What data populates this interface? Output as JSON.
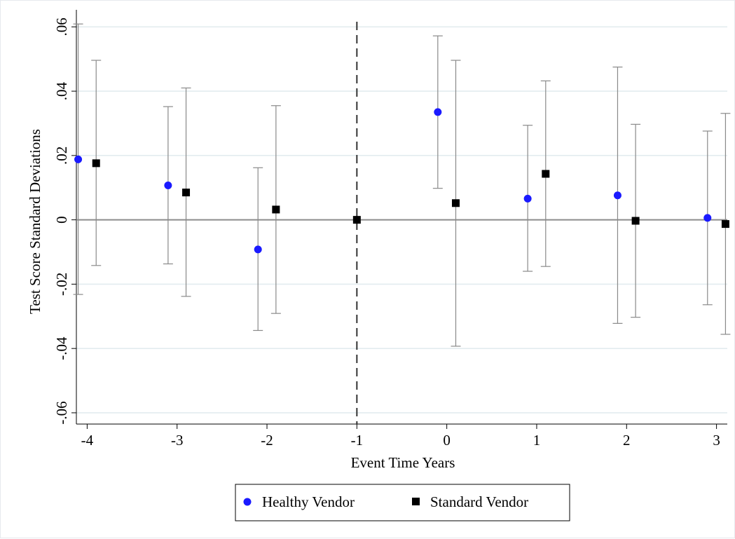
{
  "chart_data": {
    "type": "scatter",
    "title": "",
    "xlabel": "Event Time Years",
    "ylabel": "Test Score Standard Deviations",
    "x_ticks": [
      -4,
      -3,
      -2,
      -1,
      0,
      1,
      2,
      3
    ],
    "y_ticks": [
      -0.06,
      -0.04,
      -0.02,
      0,
      0.02,
      0.04,
      0.06
    ],
    "y_tick_labels": [
      "-.06",
      "-.04",
      "-.02",
      "0",
      ".02",
      ".04",
      ".06"
    ],
    "x_tick_labels": [
      "-4",
      "-3",
      "-2",
      "-1",
      "0",
      "1",
      "2",
      "3"
    ],
    "xlim": [
      -4.12,
      3.12
    ],
    "ylim": [
      -0.0635,
      0.0653
    ],
    "reference_vline": -1,
    "reference_hline": 0,
    "grid": "horizontal",
    "legend_position": "bottom",
    "series": [
      {
        "name": "Healthy Vendor",
        "marker": "circle",
        "color": "#1a1aff",
        "points": [
          {
            "x": -4.1,
            "y": 0.0188,
            "lo": -0.0232,
            "hi": 0.0609
          },
          {
            "x": -3.1,
            "y": 0.0107,
            "lo": -0.0137,
            "hi": 0.0352
          },
          {
            "x": -2.1,
            "y": -0.0092,
            "lo": -0.0344,
            "hi": 0.0162
          },
          {
            "x": -0.1,
            "y": 0.0335,
            "lo": 0.0098,
            "hi": 0.0572
          },
          {
            "x": 0.9,
            "y": 0.0066,
            "lo": -0.016,
            "hi": 0.0294
          },
          {
            "x": 1.9,
            "y": 0.0076,
            "lo": -0.0322,
            "hi": 0.0475
          },
          {
            "x": 2.9,
            "y": 0.0006,
            "lo": -0.0264,
            "hi": 0.0276
          }
        ]
      },
      {
        "name": "Standard Vendor",
        "marker": "square",
        "color": "#000000",
        "points": [
          {
            "x": -3.9,
            "y": 0.0176,
            "lo": -0.0142,
            "hi": 0.0496
          },
          {
            "x": -2.9,
            "y": 0.0085,
            "lo": -0.0238,
            "hi": 0.041
          },
          {
            "x": -1.9,
            "y": 0.0032,
            "lo": -0.0291,
            "hi": 0.0355
          },
          {
            "x": -1.0,
            "y": 0.0,
            "lo": 0.0,
            "hi": 0.0
          },
          {
            "x": 0.1,
            "y": 0.0052,
            "lo": -0.0393,
            "hi": 0.0496
          },
          {
            "x": 1.1,
            "y": 0.0143,
            "lo": -0.0145,
            "hi": 0.0432
          },
          {
            "x": 2.1,
            "y": -0.0003,
            "lo": -0.0303,
            "hi": 0.0297
          },
          {
            "x": 3.1,
            "y": -0.0013,
            "lo": -0.0356,
            "hi": 0.0331
          }
        ]
      }
    ]
  }
}
